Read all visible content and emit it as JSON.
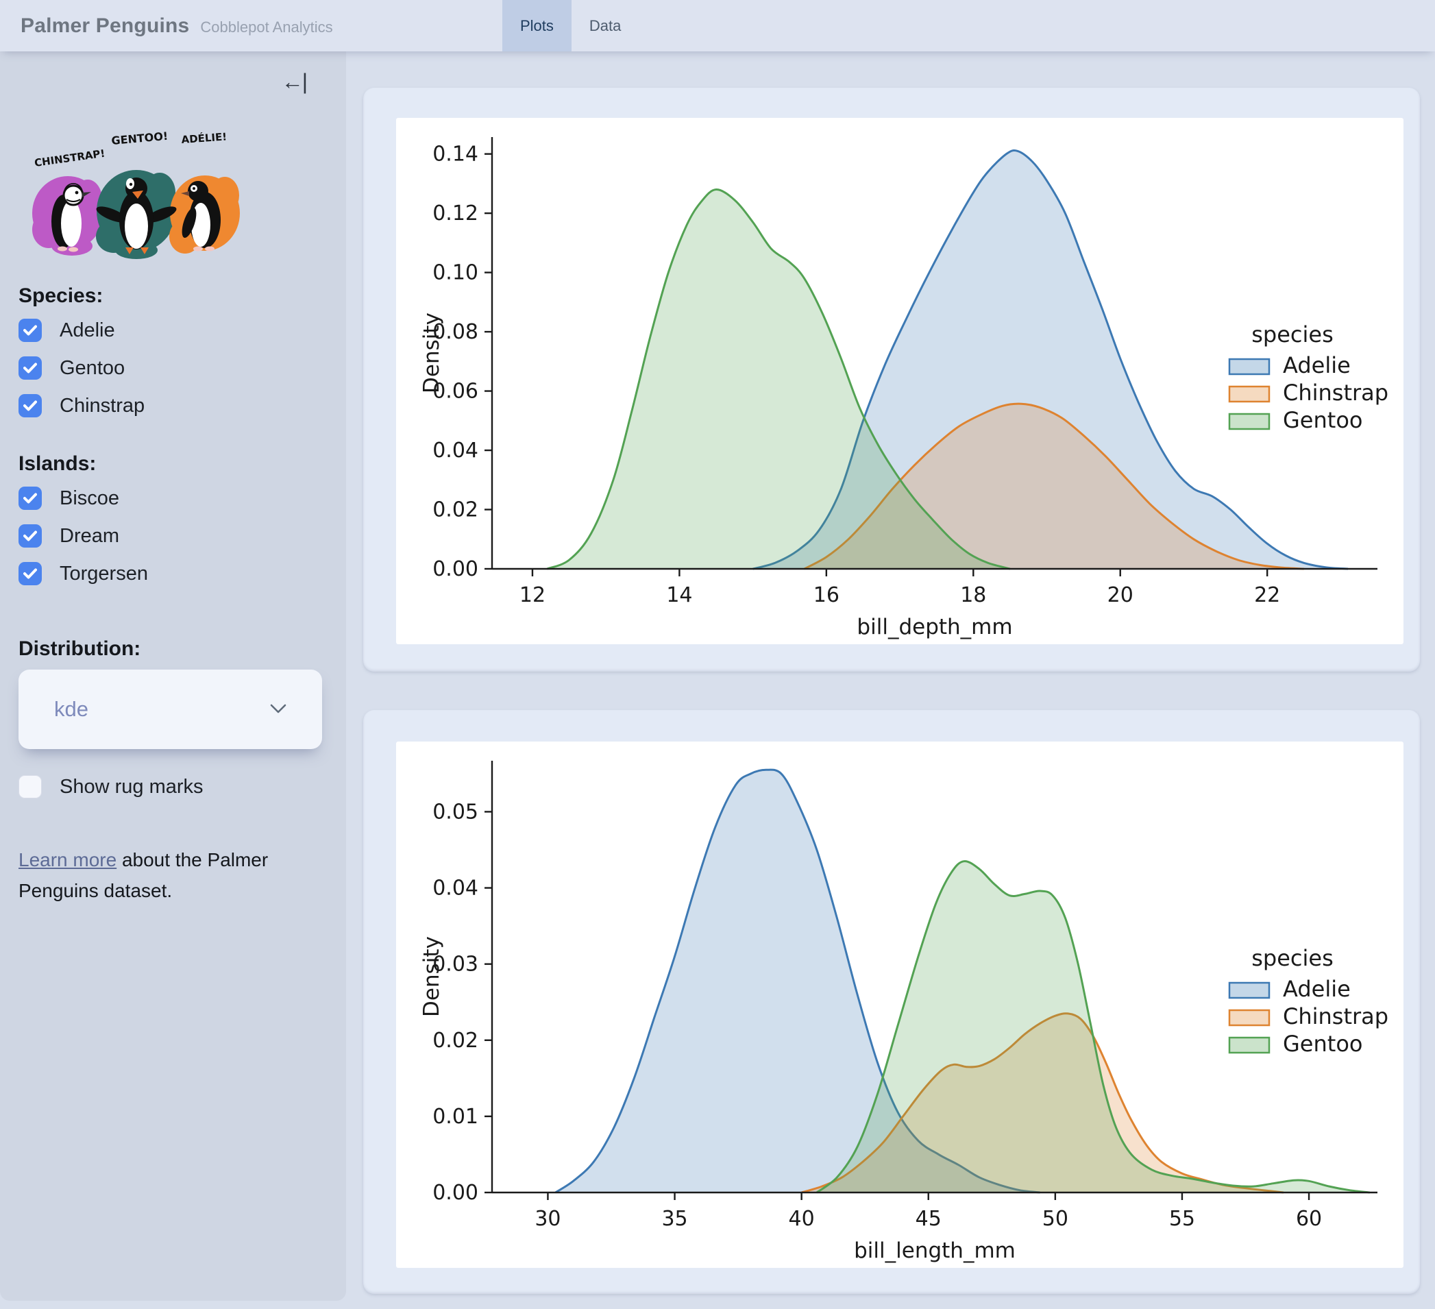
{
  "header": {
    "title": "Palmer Penguins",
    "subtitle": "Cobblepot Analytics",
    "tabs": [
      {
        "label": "Plots",
        "active": true
      },
      {
        "label": "Data",
        "active": false
      }
    ]
  },
  "sidebar": {
    "collapse_icon": "←|",
    "artwork": {
      "labels": [
        "CHINSTRAP!",
        "GENTOO!",
        "ADÉLIE!"
      ],
      "splash_colors": {
        "chinstrap": "#bd5ac6",
        "gentoo": "#2e6e69",
        "adelie": "#ef8830"
      }
    },
    "species": {
      "label": "Species:",
      "options": [
        {
          "label": "Adelie",
          "checked": true
        },
        {
          "label": "Gentoo",
          "checked": true
        },
        {
          "label": "Chinstrap",
          "checked": true
        }
      ]
    },
    "islands": {
      "label": "Islands:",
      "options": [
        {
          "label": "Biscoe",
          "checked": true
        },
        {
          "label": "Dream",
          "checked": true
        },
        {
          "label": "Torgersen",
          "checked": true
        }
      ]
    },
    "distribution": {
      "label": "Distribution:",
      "value": "kde"
    },
    "rug": {
      "label": "Show rug marks",
      "checked": false
    },
    "learn_more": {
      "link_text": "Learn more",
      "rest": " about the Palmer Penguins dataset."
    },
    "checkbox_color": "#4b83ee"
  },
  "chart_data": [
    {
      "type": "area",
      "kind": "kde",
      "xlabel": "bill_depth_mm",
      "ylabel": "Density",
      "xlim": [
        11.45,
        23.5
      ],
      "ylim": [
        0,
        0.1457
      ],
      "grid": false,
      "legend": {
        "title": "species",
        "position": "right"
      },
      "xticks": {
        "values": [
          12,
          14,
          16,
          18,
          20,
          22
        ],
        "labels": [
          "12",
          "14",
          "16",
          "18",
          "20",
          "22"
        ]
      },
      "yticks": {
        "values": [
          0,
          0.02,
          0.04,
          0.06,
          0.08,
          0.1,
          0.12,
          0.14
        ],
        "labels": [
          "0.00",
          "0.02",
          "0.04",
          "0.06",
          "0.08",
          "0.10",
          "0.12",
          "0.14"
        ]
      },
      "series": [
        {
          "name": "Adelie",
          "color": "#3d79b3",
          "peak_x": 18.6,
          "peak_y": 0.141,
          "points": [
            [
              15.0,
              0
            ],
            [
              15.3,
              0.002
            ],
            [
              15.6,
              0.006
            ],
            [
              15.9,
              0.013
            ],
            [
              16.2,
              0.027
            ],
            [
              16.5,
              0.05
            ],
            [
              16.8,
              0.069
            ],
            [
              17.1,
              0.085
            ],
            [
              17.4,
              0.1
            ],
            [
              17.7,
              0.114
            ],
            [
              18.0,
              0.127
            ],
            [
              18.2,
              0.134
            ],
            [
              18.45,
              0.14
            ],
            [
              18.6,
              0.141
            ],
            [
              18.8,
              0.1375
            ],
            [
              19.0,
              0.131
            ],
            [
              19.25,
              0.12
            ],
            [
              19.5,
              0.104
            ],
            [
              19.75,
              0.088
            ],
            [
              20.0,
              0.071
            ],
            [
              20.25,
              0.056
            ],
            [
              20.5,
              0.043
            ],
            [
              20.75,
              0.033
            ],
            [
              21.0,
              0.027
            ],
            [
              21.25,
              0.0245
            ],
            [
              21.5,
              0.02
            ],
            [
              21.75,
              0.014
            ],
            [
              22.0,
              0.0085
            ],
            [
              22.25,
              0.0045
            ],
            [
              22.5,
              0.002
            ],
            [
              22.8,
              0.0005
            ],
            [
              23.1,
              0
            ]
          ]
        },
        {
          "name": "Chinstrap",
          "color": "#de8330",
          "peak_x": 18.65,
          "peak_y": 0.056,
          "points": [
            [
              15.7,
              0
            ],
            [
              16.0,
              0.004
            ],
            [
              16.3,
              0.01
            ],
            [
              16.6,
              0.018
            ],
            [
              16.9,
              0.027
            ],
            [
              17.2,
              0.035
            ],
            [
              17.5,
              0.042
            ],
            [
              17.8,
              0.048
            ],
            [
              18.1,
              0.052
            ],
            [
              18.4,
              0.055
            ],
            [
              18.65,
              0.0557
            ],
            [
              18.9,
              0.0545
            ],
            [
              19.2,
              0.051
            ],
            [
              19.5,
              0.045
            ],
            [
              19.8,
              0.038
            ],
            [
              20.1,
              0.03
            ],
            [
              20.4,
              0.022
            ],
            [
              20.7,
              0.0155
            ],
            [
              21.0,
              0.01
            ],
            [
              21.3,
              0.006
            ],
            [
              21.6,
              0.003
            ],
            [
              21.9,
              0.0013
            ],
            [
              22.2,
              0.0004
            ],
            [
              22.5,
              0
            ]
          ]
        },
        {
          "name": "Gentoo",
          "color": "#53a253",
          "peak_x": 14.5,
          "peak_y": 0.128,
          "points": [
            [
              12.2,
              0
            ],
            [
              12.5,
              0.003
            ],
            [
              12.8,
              0.012
            ],
            [
              13.1,
              0.03
            ],
            [
              13.35,
              0.053
            ],
            [
              13.6,
              0.078
            ],
            [
              13.85,
              0.1
            ],
            [
              14.1,
              0.116
            ],
            [
              14.3,
              0.124
            ],
            [
              14.5,
              0.128
            ],
            [
              14.75,
              0.1245
            ],
            [
              15.0,
              0.117
            ],
            [
              15.25,
              0.108
            ],
            [
              15.5,
              0.1035
            ],
            [
              15.7,
              0.098
            ],
            [
              15.95,
              0.086
            ],
            [
              16.2,
              0.071
            ],
            [
              16.45,
              0.0545
            ],
            [
              16.7,
              0.042
            ],
            [
              16.95,
              0.032
            ],
            [
              17.2,
              0.0235
            ],
            [
              17.45,
              0.0165
            ],
            [
              17.7,
              0.01
            ],
            [
              17.95,
              0.005
            ],
            [
              18.2,
              0.002
            ],
            [
              18.5,
              0
            ]
          ]
        }
      ]
    },
    {
      "type": "area",
      "kind": "kde",
      "xlabel": "bill_length_mm",
      "ylabel": "Density",
      "xlim": [
        27.8,
        62.7
      ],
      "ylim": [
        0,
        0.0567
      ],
      "grid": false,
      "legend": {
        "title": "species",
        "position": "right"
      },
      "xticks": {
        "values": [
          30,
          35,
          40,
          45,
          50,
          55,
          60
        ],
        "labels": [
          "30",
          "35",
          "40",
          "45",
          "50",
          "55",
          "60"
        ]
      },
      "yticks": {
        "values": [
          0,
          0.01,
          0.02,
          0.03,
          0.04,
          0.05
        ],
        "labels": [
          "0.00",
          "0.01",
          "0.02",
          "0.03",
          "0.04",
          "0.05"
        ]
      },
      "series": [
        {
          "name": "Adelie",
          "color": "#3d79b3",
          "peak_x": 38.6,
          "peak_y": 0.0555,
          "points": [
            [
              30.3,
              0
            ],
            [
              31.0,
              0.0015
            ],
            [
              31.8,
              0.004
            ],
            [
              32.6,
              0.0085
            ],
            [
              33.4,
              0.015
            ],
            [
              34.2,
              0.023
            ],
            [
              35.0,
              0.031
            ],
            [
              35.8,
              0.04
            ],
            [
              36.6,
              0.048
            ],
            [
              37.4,
              0.0535
            ],
            [
              38.0,
              0.055
            ],
            [
              38.6,
              0.0555
            ],
            [
              39.2,
              0.055
            ],
            [
              39.8,
              0.0515
            ],
            [
              40.6,
              0.045
            ],
            [
              41.4,
              0.036
            ],
            [
              42.2,
              0.026
            ],
            [
              43.0,
              0.017
            ],
            [
              43.8,
              0.0105
            ],
            [
              44.6,
              0.0068
            ],
            [
              45.4,
              0.005
            ],
            [
              46.2,
              0.0036
            ],
            [
              47.0,
              0.002
            ],
            [
              47.8,
              0.001
            ],
            [
              48.6,
              0.0003
            ],
            [
              49.4,
              0
            ]
          ]
        },
        {
          "name": "Chinstrap",
          "color": "#de8330",
          "peak_x": 50.5,
          "peak_y": 0.0235,
          "points": [
            [
              40.0,
              0
            ],
            [
              40.8,
              0.0008
            ],
            [
              41.6,
              0.002
            ],
            [
              42.4,
              0.004
            ],
            [
              43.2,
              0.0065
            ],
            [
              44.0,
              0.01
            ],
            [
              44.8,
              0.0135
            ],
            [
              45.5,
              0.016
            ],
            [
              46.0,
              0.0168
            ],
            [
              46.5,
              0.0165
            ],
            [
              47.0,
              0.0166
            ],
            [
              47.6,
              0.0175
            ],
            [
              48.2,
              0.019
            ],
            [
              48.8,
              0.0208
            ],
            [
              49.4,
              0.0222
            ],
            [
              50.0,
              0.0232
            ],
            [
              50.5,
              0.0235
            ],
            [
              51.0,
              0.0228
            ],
            [
              51.5,
              0.0205
            ],
            [
              52.0,
              0.017
            ],
            [
              52.5,
              0.013
            ],
            [
              53.0,
              0.0095
            ],
            [
              53.6,
              0.0062
            ],
            [
              54.2,
              0.004
            ],
            [
              55.0,
              0.0025
            ],
            [
              55.8,
              0.0017
            ],
            [
              56.6,
              0.001
            ],
            [
              57.4,
              0.0006
            ],
            [
              58.2,
              0.0003
            ],
            [
              59.0,
              0
            ]
          ]
        },
        {
          "name": "Gentoo",
          "color": "#53a253",
          "peak_x": 46.4,
          "peak_y": 0.0435,
          "points": [
            [
              40.6,
              0
            ],
            [
              41.4,
              0.002
            ],
            [
              42.2,
              0.006
            ],
            [
              43.0,
              0.013
            ],
            [
              43.8,
              0.022
            ],
            [
              44.6,
              0.031
            ],
            [
              45.3,
              0.038
            ],
            [
              45.9,
              0.042
            ],
            [
              46.4,
              0.0435
            ],
            [
              47.0,
              0.0425
            ],
            [
              47.6,
              0.0405
            ],
            [
              48.2,
              0.039
            ],
            [
              48.8,
              0.0392
            ],
            [
              49.4,
              0.0396
            ],
            [
              49.9,
              0.039
            ],
            [
              50.4,
              0.036
            ],
            [
              50.9,
              0.03
            ],
            [
              51.4,
              0.022
            ],
            [
              51.9,
              0.014
            ],
            [
              52.4,
              0.0085
            ],
            [
              53.0,
              0.005
            ],
            [
              53.8,
              0.003
            ],
            [
              54.6,
              0.0022
            ],
            [
              55.4,
              0.0018
            ],
            [
              56.2,
              0.0013
            ],
            [
              57.0,
              0.0009
            ],
            [
              57.8,
              0.0008
            ],
            [
              58.6,
              0.0012
            ],
            [
              59.4,
              0.0016
            ],
            [
              60.0,
              0.0015
            ],
            [
              60.8,
              0.0008
            ],
            [
              61.6,
              0.0003
            ],
            [
              62.4,
              0
            ]
          ]
        }
      ]
    }
  ]
}
